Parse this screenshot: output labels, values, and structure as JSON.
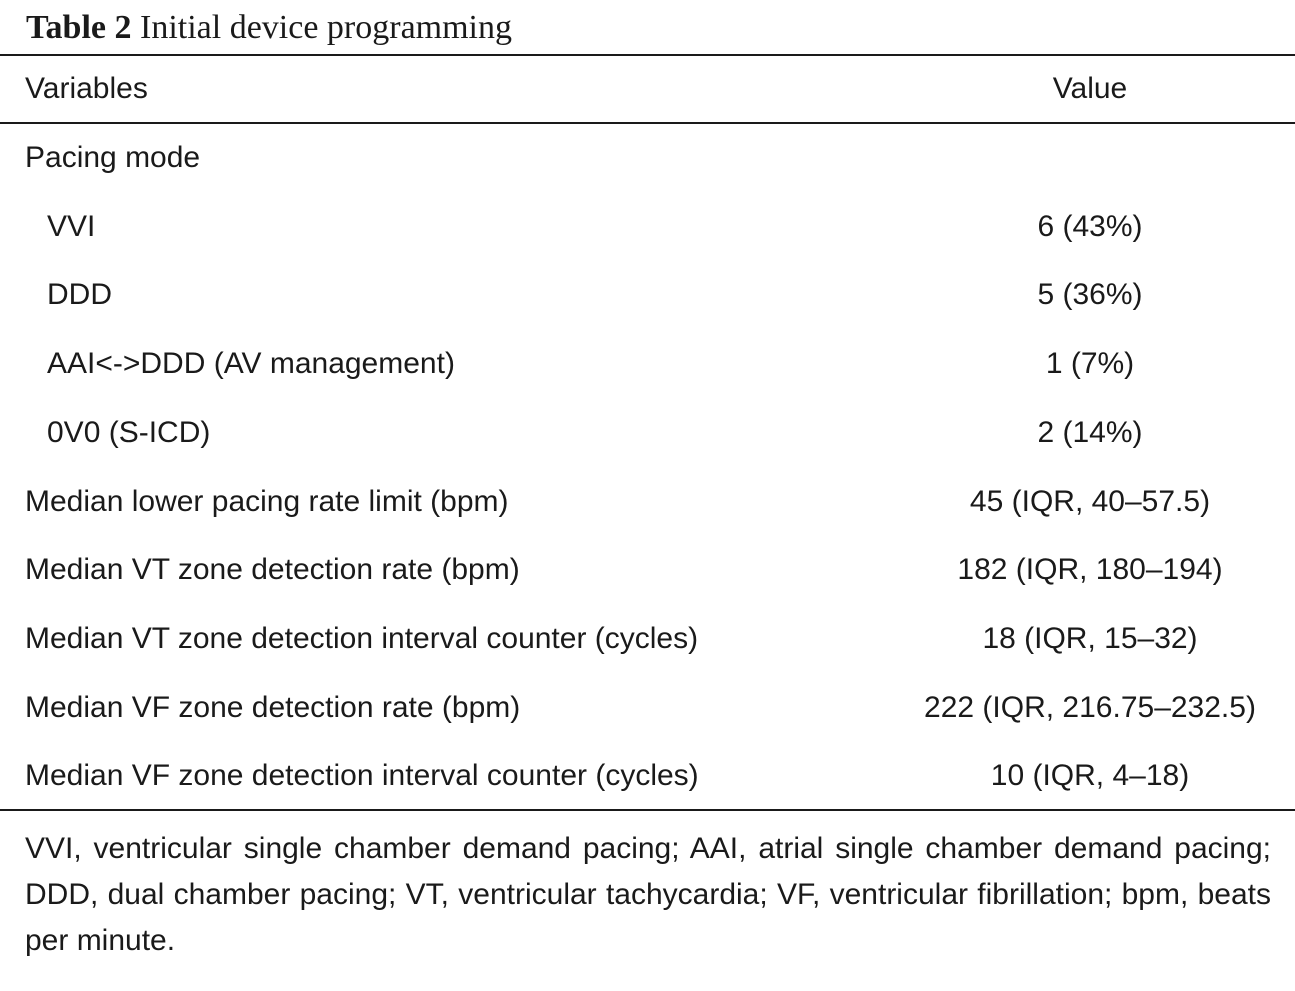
{
  "caption": {
    "label": "Table 2",
    "title": "Initial device programming"
  },
  "table": {
    "headers": {
      "variable": "Variables",
      "value": "Value"
    },
    "rows": [
      {
        "variable": "Pacing mode",
        "value": "",
        "indent": false
      },
      {
        "variable": "VVI",
        "value": "6 (43%)",
        "indent": true
      },
      {
        "variable": "DDD",
        "value": "5 (36%)",
        "indent": true
      },
      {
        "variable": "AAI<->DDD (AV management)",
        "value": "1 (7%)",
        "indent": true
      },
      {
        "variable": "0V0 (S-ICD)",
        "value": "2 (14%)",
        "indent": true
      },
      {
        "variable": "Median lower pacing rate limit (bpm)",
        "value": "45 (IQR, 40–57.5)",
        "indent": false
      },
      {
        "variable": "Median VT zone detection rate (bpm)",
        "value": "182 (IQR, 180–194)",
        "indent": false
      },
      {
        "variable": "Median VT zone detection interval counter (cycles)",
        "value": "18 (IQR, 15–32)",
        "indent": false
      },
      {
        "variable": "Median VF zone detection rate (bpm)",
        "value": "222 (IQR, 216.75–232.5)",
        "indent": false
      },
      {
        "variable": "Median VF zone detection interval counter (cycles)",
        "value": "10 (IQR, 4–18)",
        "indent": false
      }
    ]
  },
  "footnote": "VVI, ventricular single chamber demand pacing; AAI, atrial single chamber demand pacing; DDD, dual chamber pacing; VT, ventricular tachycardia; VF, ventricular fibrillation; bpm, beats per minute."
}
